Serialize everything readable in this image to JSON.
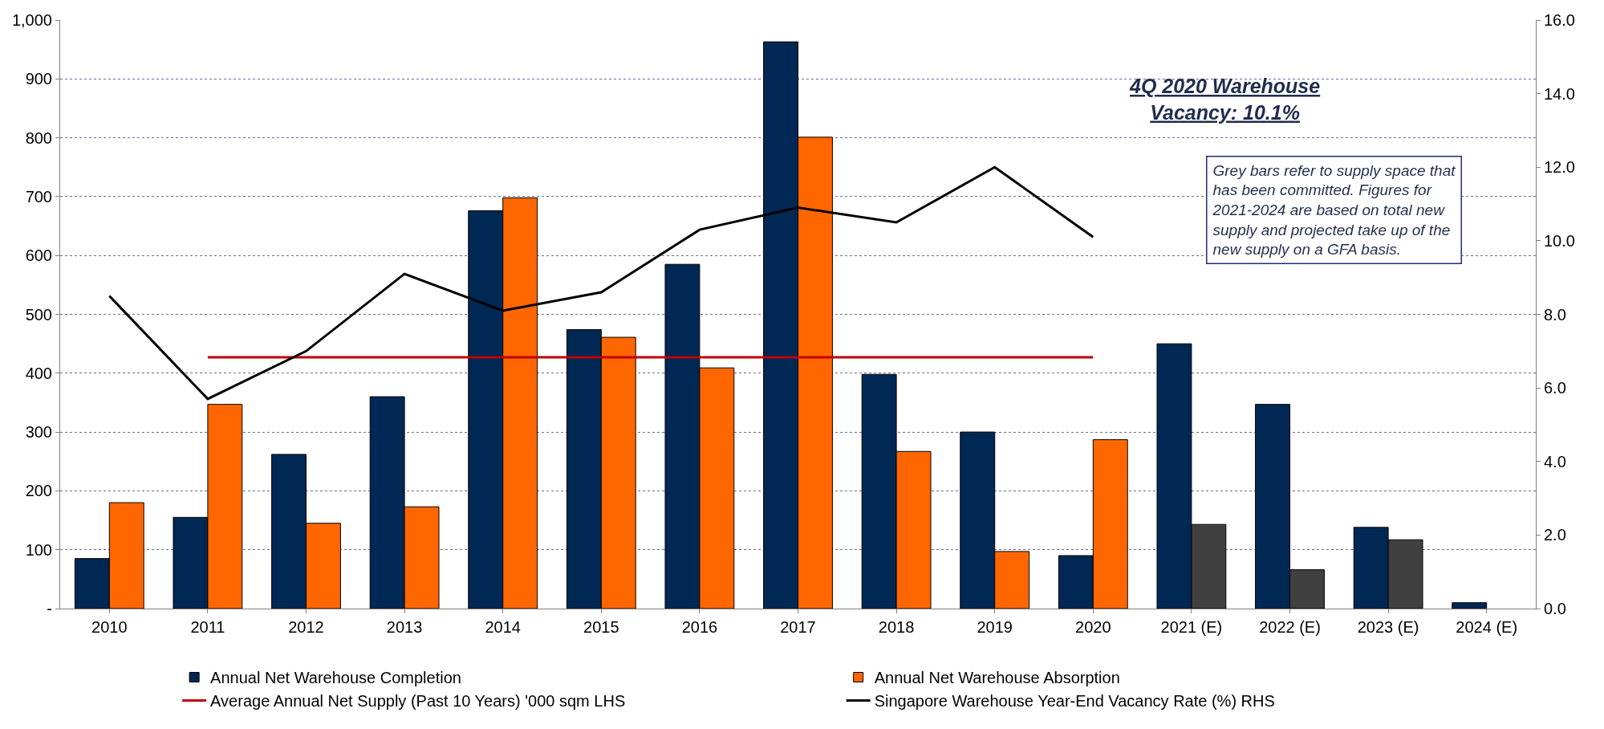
{
  "chart_data": {
    "type": "bar",
    "categories": [
      "2010",
      "2011",
      "2012",
      "2013",
      "2014",
      "2015",
      "2016",
      "2017",
      "2018",
      "2019",
      "2020",
      "2021 (E)",
      "2022 (E)",
      "2023 (E)",
      "2024 (E)"
    ],
    "series": [
      {
        "name": "Annual Net Warehouse Completion",
        "color": "#002855",
        "values": [
          85,
          155,
          262,
          360,
          676,
          474,
          585,
          963,
          398,
          300,
          90,
          450,
          347,
          138,
          10
        ]
      },
      {
        "name": "Annual Net Warehouse Absorption",
        "color": "#ff6600",
        "colors": [
          "#ff6600",
          "#ff6600",
          "#ff6600",
          "#ff6600",
          "#ff6600",
          "#ff6600",
          "#ff6600",
          "#ff6600",
          "#ff6600",
          "#ff6600",
          "#ff6600",
          "#404040",
          "#404040",
          "#404040",
          "#404040"
        ],
        "values": [
          180,
          347,
          145,
          173,
          698,
          461,
          409,
          801,
          267,
          97,
          287,
          143,
          66,
          117,
          null
        ]
      },
      {
        "name": "Average Annual Net Supply (Past 10 Years) '000 sqm LHS",
        "type": "line",
        "color": "#c00000",
        "values": [
          null,
          427,
          427,
          427,
          427,
          427,
          427,
          427,
          427,
          427,
          427,
          null,
          null,
          null,
          null
        ]
      },
      {
        "name": "Singapore Warehouse Year-End Vacancy Rate (%) RHS",
        "type": "line",
        "axis": "y2",
        "color": "#000000",
        "values": [
          8.5,
          5.7,
          7.0,
          9.1,
          8.1,
          8.6,
          10.3,
          10.9,
          10.5,
          12.0,
          10.1,
          null,
          null,
          null,
          null
        ]
      }
    ],
    "ylim": [
      0,
      1000
    ],
    "yticks": [
      {
        "value": 0,
        "label": "-"
      },
      100,
      200,
      300,
      400,
      500,
      600,
      700,
      800,
      900,
      {
        "value": 1000,
        "label": "1,000"
      }
    ],
    "y2lim": [
      0,
      16
    ],
    "y2ticks": [
      {
        "value": 0,
        "label": "0.0"
      },
      {
        "value": 2,
        "label": "2.0"
      },
      {
        "value": 4,
        "label": "4.0"
      },
      {
        "value": 6,
        "label": "6.0"
      },
      {
        "value": 8,
        "label": "8.0"
      },
      {
        "value": 10,
        "label": "10.0"
      },
      {
        "value": 12,
        "label": "12.0"
      },
      {
        "value": 14,
        "label": "14.0"
      },
      {
        "value": 16,
        "label": "16.0"
      }
    ],
    "grid": "y",
    "legend": "bottom",
    "marker": "none",
    "line_style": "solid",
    "annotations": [
      "4Q 2020 Warehouse Vacancy: 10.1%",
      "Grey bars refer to supply space that has been committed. Figures for 2021-2024 are based on total new supply and projected take up of the new supply on a GFA basis."
    ]
  }
}
